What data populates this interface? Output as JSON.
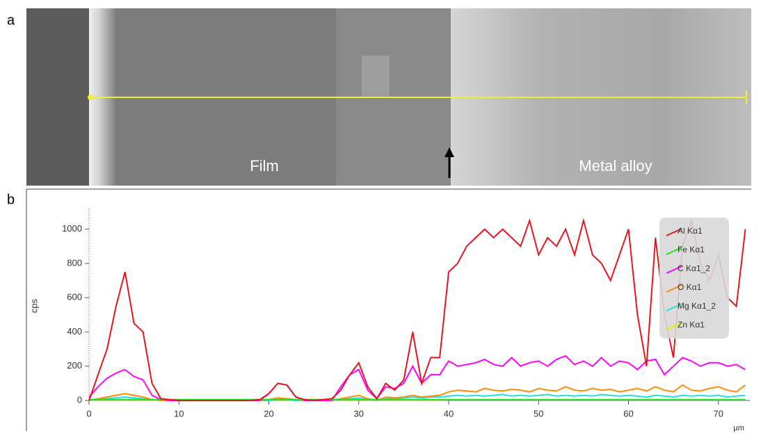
{
  "image_panel": {
    "label": "a",
    "annotations": [
      "Film",
      "Metal alloy"
    ]
  },
  "chart_panel_label": "b",
  "chart_data": {
    "type": "line",
    "xlabel": "µm",
    "ylabel": "cps",
    "xlim": [
      0,
      73.5
    ],
    "xticks": [
      0,
      10,
      20,
      30,
      40,
      50,
      60,
      70
    ],
    "ylim": [
      0,
      1120
    ],
    "yticks": [
      0,
      200,
      400,
      600,
      800,
      1000
    ],
    "legend": "upper right",
    "x": [
      0,
      1,
      2,
      3,
      4,
      5,
      6,
      7,
      8,
      9,
      10,
      11,
      12,
      13,
      14,
      15,
      16,
      17,
      18,
      19,
      20,
      21,
      22,
      23,
      24,
      25,
      26,
      27,
      28,
      29,
      30,
      31,
      32,
      33,
      34,
      35,
      36,
      37,
      38,
      39,
      40,
      41,
      42,
      43,
      44,
      45,
      46,
      47,
      48,
      49,
      50,
      51,
      52,
      53,
      54,
      55,
      56,
      57,
      58,
      59,
      60,
      61,
      62,
      63,
      64,
      65,
      66,
      67,
      68,
      69,
      70,
      71,
      72,
      73
    ],
    "series": [
      {
        "name": "Al Kα1",
        "color": "#e8141b",
        "values": [
          0,
          150,
          300,
          550,
          750,
          450,
          400,
          100,
          10,
          5,
          0,
          0,
          0,
          0,
          0,
          0,
          0,
          0,
          0,
          5,
          40,
          100,
          90,
          20,
          5,
          0,
          5,
          10,
          60,
          150,
          220,
          80,
          10,
          100,
          60,
          120,
          400,
          100,
          250,
          250,
          750,
          800,
          900,
          950,
          1000,
          950,
          1000,
          950,
          900,
          1050,
          850,
          950,
          900,
          1000,
          850,
          1050,
          850,
          800,
          700,
          850,
          1000,
          500,
          200,
          950,
          500,
          250,
          900,
          1050,
          800,
          700,
          850,
          600,
          550,
          1000
        ]
      },
      {
        "name": "Fe Kα1",
        "color": "#22dd22",
        "values": [
          5,
          5,
          5,
          5,
          5,
          5,
          5,
          5,
          5,
          5,
          5,
          5,
          5,
          5,
          5,
          5,
          5,
          5,
          5,
          5,
          5,
          5,
          5,
          5,
          5,
          5,
          5,
          5,
          5,
          5,
          5,
          5,
          5,
          5,
          5,
          5,
          5,
          5,
          5,
          5,
          5,
          5,
          5,
          5,
          5,
          5,
          5,
          5,
          5,
          5,
          5,
          5,
          5,
          5,
          5,
          5,
          5,
          5,
          5,
          5,
          5,
          5,
          5,
          5,
          5,
          5,
          5,
          5,
          5,
          5,
          5,
          5,
          5,
          5
        ]
      },
      {
        "name": "C Kα1_2",
        "color": "#ff00ff",
        "values": [
          20,
          80,
          130,
          160,
          180,
          140,
          120,
          30,
          5,
          0,
          0,
          0,
          0,
          0,
          0,
          0,
          0,
          0,
          0,
          0,
          40,
          100,
          90,
          20,
          0,
          0,
          0,
          0,
          80,
          150,
          180,
          60,
          10,
          80,
          70,
          100,
          200,
          100,
          150,
          150,
          230,
          200,
          210,
          220,
          240,
          210,
          200,
          250,
          200,
          220,
          230,
          200,
          240,
          260,
          210,
          230,
          200,
          250,
          200,
          230,
          220,
          180,
          230,
          240,
          150,
          200,
          250,
          230,
          200,
          220,
          220,
          200,
          210,
          180
        ]
      },
      {
        "name": "O Kα1",
        "color": "#ff8c00",
        "values": [
          0,
          10,
          20,
          30,
          40,
          30,
          20,
          5,
          0,
          0,
          0,
          0,
          0,
          0,
          0,
          0,
          0,
          0,
          0,
          0,
          5,
          15,
          10,
          5,
          0,
          0,
          0,
          0,
          10,
          20,
          30,
          10,
          0,
          20,
          15,
          20,
          30,
          20,
          25,
          30,
          50,
          60,
          55,
          50,
          70,
          60,
          55,
          65,
          60,
          50,
          70,
          60,
          55,
          80,
          60,
          55,
          70,
          60,
          65,
          50,
          60,
          70,
          55,
          80,
          60,
          50,
          90,
          60,
          55,
          70,
          80,
          60,
          50,
          90
        ]
      },
      {
        "name": "Mg Kα1_2",
        "color": "#22dddd",
        "values": [
          0,
          5,
          10,
          15,
          20,
          15,
          10,
          5,
          0,
          0,
          0,
          0,
          0,
          0,
          0,
          0,
          0,
          0,
          0,
          0,
          0,
          5,
          5,
          0,
          0,
          0,
          0,
          0,
          5,
          10,
          15,
          5,
          0,
          10,
          10,
          15,
          20,
          15,
          20,
          20,
          25,
          30,
          25,
          30,
          25,
          30,
          35,
          25,
          30,
          25,
          30,
          35,
          25,
          30,
          25,
          30,
          25,
          35,
          30,
          25,
          30,
          25,
          20,
          30,
          25,
          20,
          30,
          25,
          30,
          25,
          30,
          20,
          25,
          30
        ]
      },
      {
        "name": "Zn Kα1",
        "color": "#eeee00",
        "values": [
          2,
          3,
          3,
          3,
          3,
          3,
          3,
          3,
          2,
          2,
          2,
          2,
          2,
          2,
          2,
          2,
          2,
          2,
          2,
          2,
          3,
          3,
          3,
          3,
          2,
          2,
          2,
          2,
          3,
          3,
          3,
          3,
          3,
          3,
          3,
          3,
          3,
          3,
          3,
          3,
          4,
          4,
          4,
          4,
          4,
          4,
          4,
          4,
          4,
          4,
          4,
          4,
          4,
          4,
          4,
          4,
          4,
          4,
          4,
          4,
          4,
          4,
          4,
          4,
          4,
          4,
          4,
          4,
          4,
          4,
          4,
          4,
          4,
          4
        ]
      }
    ]
  }
}
